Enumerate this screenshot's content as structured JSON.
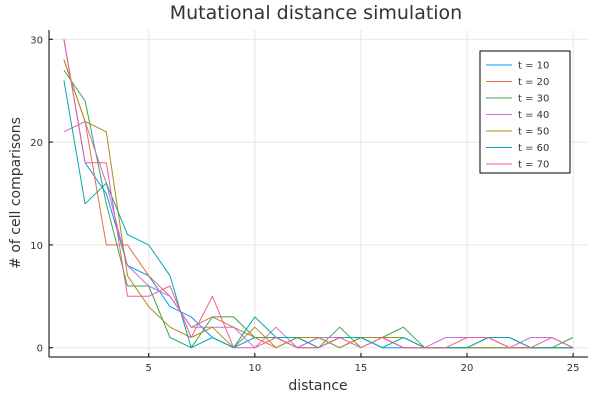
{
  "chart_data": {
    "type": "line",
    "title": "Mutational distance simulation",
    "xlabel": "distance",
    "ylabel": "# of cell comparisons",
    "xlim": [
      0.3,
      25.7
    ],
    "ylim": [
      -0.9,
      30.9
    ],
    "x_ticks": [
      5,
      10,
      15,
      20,
      25
    ],
    "y_ticks": [
      0,
      10,
      20,
      30
    ],
    "grid": true,
    "legend_position": "top-right",
    "x": [
      1,
      2,
      3,
      4,
      5,
      6,
      7,
      8,
      9,
      10,
      11,
      12,
      13,
      14,
      15,
      16,
      17,
      18,
      19,
      20,
      21,
      22,
      23,
      24,
      25
    ],
    "series": [
      {
        "name": "t = 10",
        "color": "#009AFA",
        "values": [
          30,
          18,
          15,
          8,
          7,
          4,
          3,
          1,
          0,
          1,
          1,
          0,
          1,
          0,
          1,
          0,
          0,
          0,
          0,
          0,
          0,
          0,
          0,
          0,
          0
        ]
      },
      {
        "name": "t = 20",
        "color": "#E36F47",
        "values": [
          28,
          22,
          10,
          10,
          7,
          5,
          2,
          3,
          2,
          1,
          0,
          1,
          0,
          1,
          1,
          1,
          0,
          0,
          0,
          0,
          1,
          1,
          0,
          0,
          0
        ]
      },
      {
        "name": "t = 30",
        "color": "#3EA44E",
        "values": [
          27,
          24,
          14,
          6,
          6,
          1,
          0,
          3,
          3,
          1,
          1,
          0,
          0,
          2,
          0,
          1,
          2,
          0,
          0,
          0,
          0,
          0,
          0,
          0,
          1
        ]
      },
      {
        "name": "t = 40",
        "color": "#C371D2",
        "values": [
          21,
          22,
          16,
          8,
          6,
          5,
          2,
          2,
          2,
          0,
          2,
          0,
          1,
          1,
          1,
          1,
          0,
          0,
          1,
          1,
          1,
          0,
          1,
          1,
          0
        ]
      },
      {
        "name": "t = 50",
        "color": "#AC8D18",
        "values": [
          28,
          22,
          21,
          7,
          4,
          2,
          1,
          2,
          0,
          2,
          0,
          1,
          1,
          0,
          1,
          1,
          1,
          0,
          0,
          0,
          0,
          0,
          0,
          0,
          0
        ]
      },
      {
        "name": "t = 60",
        "color": "#00A9AD",
        "values": [
          26,
          14,
          16,
          11,
          10,
          7,
          0,
          1,
          0,
          3,
          1,
          1,
          0,
          1,
          1,
          0,
          1,
          0,
          0,
          0,
          1,
          1,
          0,
          0,
          0
        ]
      },
      {
        "name": "t = 70",
        "color": "#ED5E93",
        "values": [
          30,
          18,
          18,
          5,
          5,
          6,
          1,
          5,
          0,
          0,
          1,
          0,
          0,
          1,
          0,
          1,
          0,
          0,
          0,
          1,
          1,
          0,
          0,
          1,
          0
        ]
      }
    ]
  }
}
